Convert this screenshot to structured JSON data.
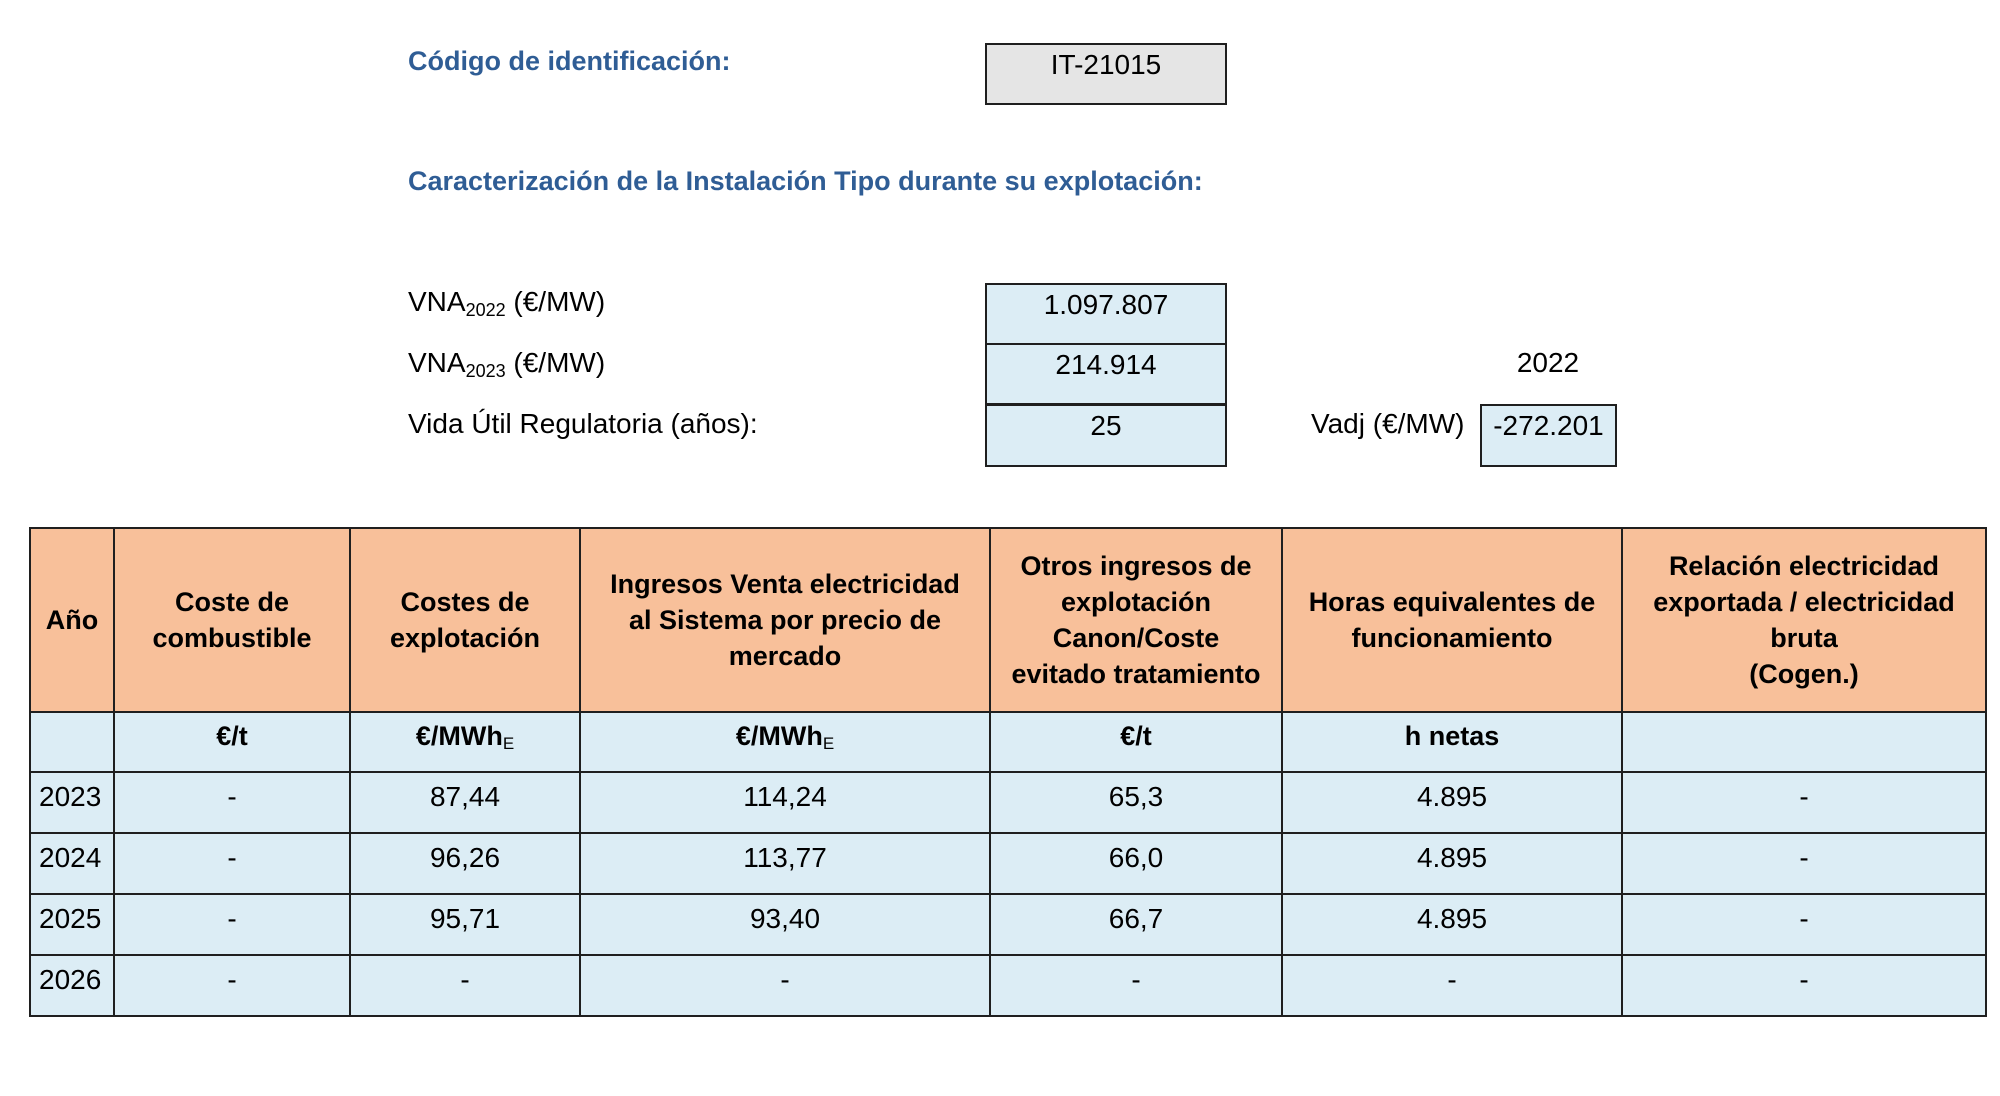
{
  "header": {
    "code_label": "Código de identificación:",
    "code_value": "IT-21015",
    "section_title": "Caracterización de la Instalación Tipo durante su explotación:"
  },
  "params": {
    "vna_2022": {
      "prefix": "VNA",
      "sub": "2022",
      "suffix": " (€/MW)",
      "value": "1.097.807"
    },
    "vna_2023": {
      "prefix": "VNA",
      "sub": "2023",
      "suffix": " (€/MW)",
      "value": "214.914"
    },
    "vida_util": {
      "label": "Vida Útil Regulatoria (años):",
      "value": "25"
    },
    "year_label": "2022",
    "vadj": {
      "label": "Vadj (€/MW)",
      "value": "-272.201"
    }
  },
  "table": {
    "headers": [
      "Año",
      "Coste de\ncombustible",
      "Costes de\nexplotación",
      "Ingresos Venta electricidad\nal Sistema por precio de\nmercado",
      "Otros ingresos de\nexplotación\nCanon/Coste\nevitado tratamiento",
      "Horas equivalentes de\nfuncionamiento",
      "Relación electricidad\nexportada / electricidad\nbruta\n(Cogen.)"
    ],
    "units": [
      {
        "main": "",
        "sub": ""
      },
      {
        "main": "€/t",
        "sub": ""
      },
      {
        "main": "€/MWh",
        "sub": "E"
      },
      {
        "main": "€/MWh",
        "sub": "E"
      },
      {
        "main": "€/t",
        "sub": ""
      },
      {
        "main": "h netas",
        "sub": ""
      },
      {
        "main": "",
        "sub": ""
      }
    ],
    "rows": [
      [
        "2023",
        "-",
        "87,44",
        "114,24",
        "65,3",
        "4.895",
        "-"
      ],
      [
        "2024",
        "-",
        "96,26",
        "113,77",
        "66,0",
        "4.895",
        "-"
      ],
      [
        "2025",
        "-",
        "95,71",
        "93,40",
        "66,7",
        "4.895",
        "-"
      ],
      [
        "2026",
        "-",
        "-",
        "-",
        "-",
        "-",
        "-"
      ]
    ]
  },
  "colors": {
    "heading": "#2f5d95",
    "header_fill": "#f8c09a",
    "cell_fill": "#dcedf5",
    "code_fill": "#e5e5e5"
  }
}
